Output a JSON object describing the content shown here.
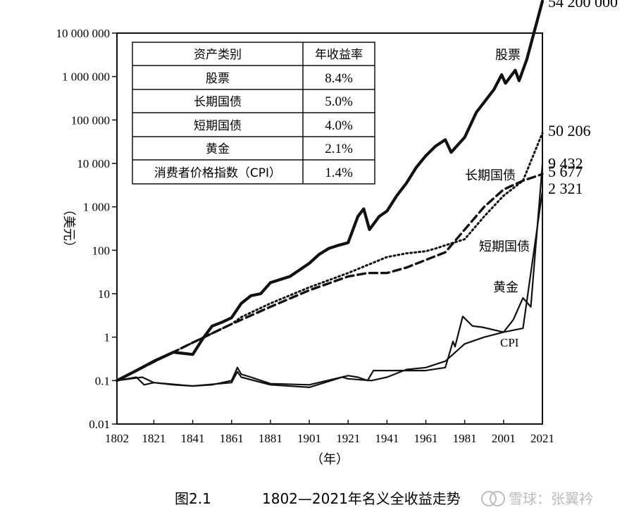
{
  "chart_data": {
    "type": "line",
    "title": "",
    "xlabel": "（年）",
    "ylabel": "（美元）",
    "y_scale": "log",
    "ylim": [
      0.01,
      10000000
    ],
    "xlim": [
      1802,
      2021
    ],
    "x_ticks": [
      "1802",
      "1821",
      "1841",
      "1861",
      "1881",
      "1901",
      "1921",
      "1941",
      "1961",
      "1981",
      "2001",
      "2021"
    ],
    "y_ticks": [
      {
        "value": 10000000,
        "label": "10 000 000"
      },
      {
        "value": 1000000,
        "label": "1 000 000"
      },
      {
        "value": 100000,
        "label": "100 000"
      },
      {
        "value": 10000,
        "label": "10 000"
      },
      {
        "value": 1000,
        "label": "1 000"
      },
      {
        "value": 100,
        "label": "100"
      },
      {
        "value": 10,
        "label": "10"
      },
      {
        "value": 1,
        "label": "1"
      },
      {
        "value": 0.1,
        "label": "0.1"
      },
      {
        "value": 0.01,
        "label": "0.01"
      }
    ],
    "series": [
      {
        "name": "股票",
        "end_label": "54 200 000",
        "style": "solid-thick",
        "x": [
          1802,
          1812,
          1821,
          1831,
          1841,
          1846,
          1851,
          1856,
          1861,
          1866,
          1871,
          1876,
          1881,
          1891,
          1901,
          1906,
          1911,
          1916,
          1921,
          1926,
          1929,
          1932,
          1937,
          1941,
          1946,
          1951,
          1956,
          1961,
          1966,
          1971,
          1974,
          1981,
          1987,
          1996,
          2000,
          2002,
          2007,
          2009,
          2013,
          2021
        ],
        "y": [
          0.1,
          0.17,
          0.28,
          0.45,
          0.4,
          0.9,
          1.8,
          2.2,
          2.8,
          6,
          9,
          10,
          18,
          25,
          50,
          80,
          110,
          130,
          150,
          600,
          900,
          300,
          600,
          800,
          1800,
          3500,
          8000,
          15000,
          25000,
          35000,
          18000,
          40000,
          150000,
          500000,
          1100000,
          700000,
          1400000,
          800000,
          2500000,
          54200000
        ]
      },
      {
        "name": "长期国债",
        "end_label": "50 206",
        "style": "dotted",
        "x": [
          1802,
          1821,
          1841,
          1861,
          1866,
          1881,
          1901,
          1921,
          1941,
          1951,
          1961,
          1966,
          1971,
          1981,
          1991,
          2001,
          2011,
          2021
        ],
        "y": [
          0.1,
          0.27,
          0.75,
          2.0,
          2.9,
          6,
          14,
          30,
          70,
          85,
          95,
          110,
          130,
          180,
          600,
          1800,
          4000,
          50206
        ]
      },
      {
        "name": "短期国债",
        "end_label": "5 677",
        "style": "dashed",
        "x": [
          1802,
          1821,
          1841,
          1861,
          1881,
          1901,
          1921,
          1931,
          1941,
          1951,
          1961,
          1971,
          1981,
          1991,
          2001,
          2011,
          2021
        ],
        "y": [
          0.1,
          0.27,
          0.75,
          2.0,
          5,
          12,
          25,
          30,
          30,
          40,
          60,
          90,
          300,
          1000,
          2500,
          4000,
          5677
        ]
      },
      {
        "name": "黄金",
        "end_label": "9 432",
        "style": "solid",
        "x": [
          1802,
          1812,
          1816,
          1821,
          1831,
          1841,
          1851,
          1861,
          1864,
          1866,
          1871,
          1881,
          1901,
          1921,
          1926,
          1931,
          1934,
          1941,
          1961,
          1971,
          1975,
          1976,
          1980,
          1985,
          1990,
          2001,
          2006,
          2011,
          2015,
          2021
        ],
        "y": [
          0.1,
          0.12,
          0.08,
          0.09,
          0.08,
          0.075,
          0.08,
          0.1,
          0.2,
          0.14,
          0.12,
          0.085,
          0.08,
          0.13,
          0.12,
          0.1,
          0.17,
          0.17,
          0.17,
          0.2,
          0.8,
          0.6,
          3.0,
          1.8,
          1.7,
          1.3,
          2.5,
          8,
          5,
          9432
        ]
      },
      {
        "name": "CPI",
        "end_label": "2 321",
        "style": "solid",
        "x": [
          1802,
          1815,
          1821,
          1841,
          1861,
          1864,
          1866,
          1881,
          1901,
          1918,
          1921,
          1933,
          1941,
          1951,
          1961,
          1971,
          1981,
          1991,
          2001,
          2011,
          2021
        ],
        "y": [
          0.1,
          0.12,
          0.09,
          0.075,
          0.09,
          0.16,
          0.12,
          0.08,
          0.07,
          0.12,
          0.11,
          0.1,
          0.12,
          0.18,
          0.2,
          0.28,
          0.7,
          1.0,
          1.3,
          1.6,
          2321
        ]
      }
    ],
    "table": {
      "headers": [
        "资产类别",
        "年收益率"
      ],
      "rows": [
        [
          "股票",
          "8.4%"
        ],
        [
          "长期国债",
          "5.0%"
        ],
        [
          "短期国债",
          "4.0%"
        ],
        [
          "黄金",
          "2.1%"
        ],
        [
          "消费者价格指数（CPI）",
          "1.4%"
        ]
      ]
    }
  },
  "caption": {
    "figure_no": "图2.1",
    "text": "1802—2021年名义全收益走势"
  },
  "watermark": "雪球：张翼衿"
}
